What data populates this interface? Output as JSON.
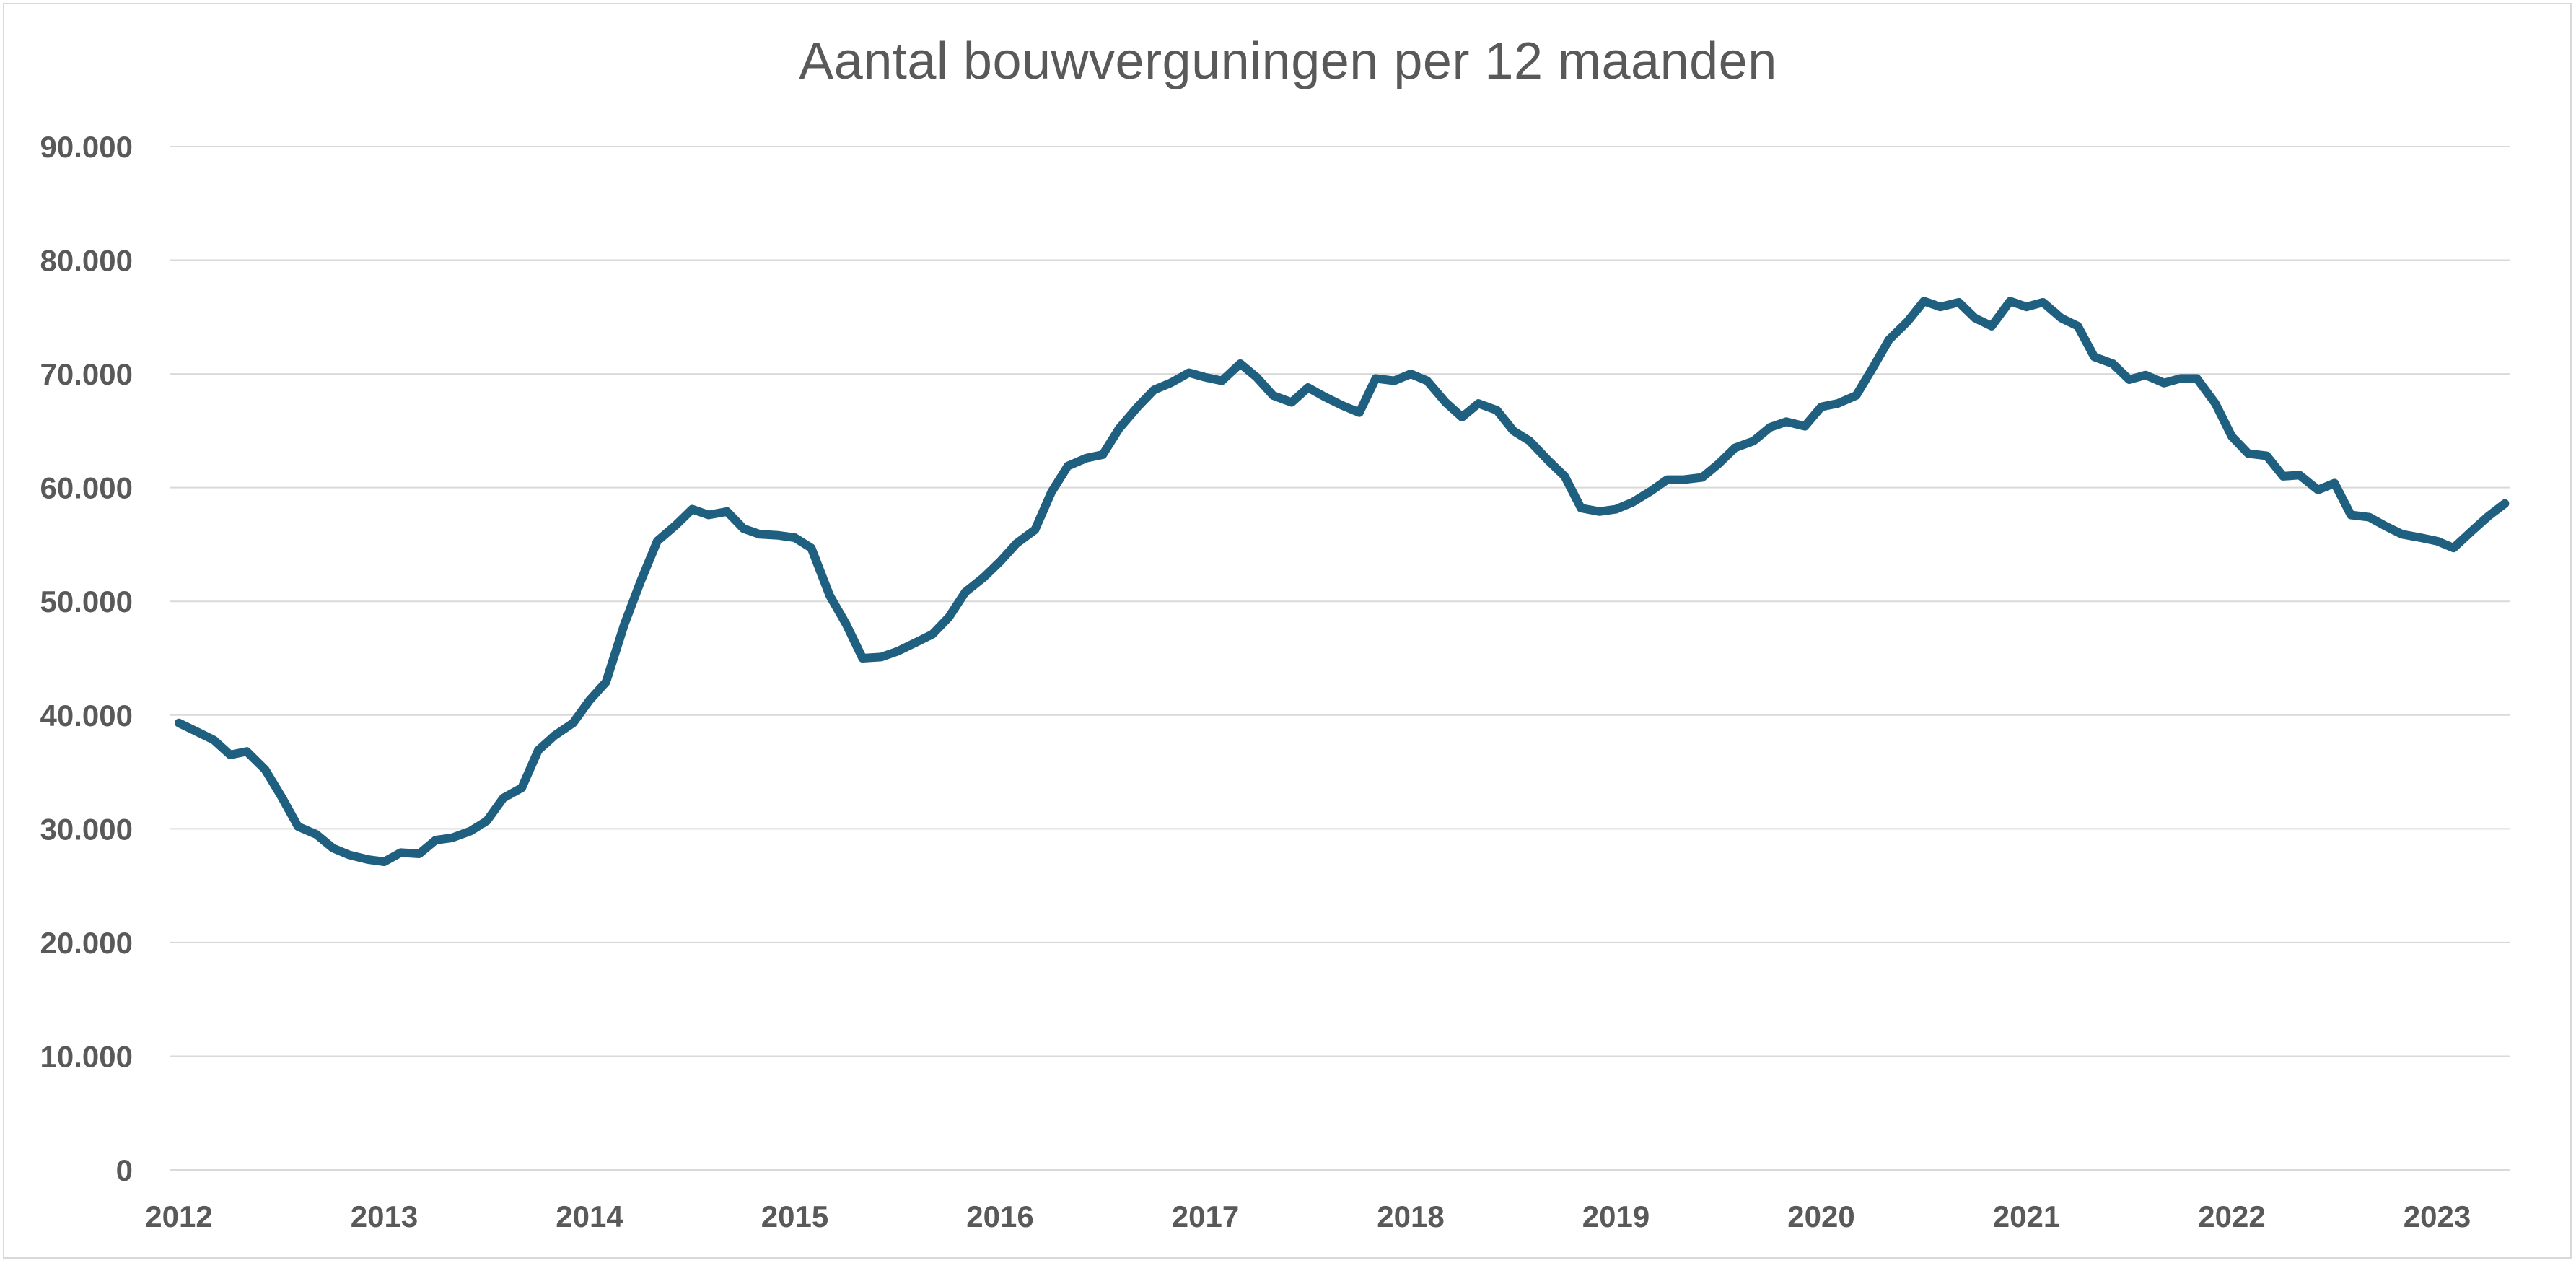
{
  "colors": {
    "line": "#1f5f80",
    "grid": "#d9d9d9",
    "text": "#595959",
    "background": "#ffffff"
  },
  "chart_data": {
    "type": "line",
    "title": "Aantal bouwverguningen per 12 maanden",
    "xlabel": "",
    "ylabel": "",
    "grid": true,
    "legend": "none",
    "ylim": [
      0,
      90000
    ],
    "xlim": [
      2012,
      2023.4
    ],
    "y_ticks": [
      0,
      10000,
      20000,
      30000,
      40000,
      50000,
      60000,
      70000,
      80000,
      90000
    ],
    "y_tick_labels": [
      "0",
      "10.000",
      "20.000",
      "30.000",
      "40.000",
      "50.000",
      "60.000",
      "70.000",
      "80.000",
      "90.000"
    ],
    "x_ticks": [
      2012,
      2013,
      2014,
      2015,
      2016,
      2017,
      2018,
      2019,
      2020,
      2021,
      2022,
      2023
    ],
    "x_tick_labels": [
      "2012",
      "2013",
      "2014",
      "2015",
      "2016",
      "2017",
      "2018",
      "2019",
      "2020",
      "2021",
      "2022",
      "2023"
    ],
    "series": [
      {
        "x": [
          2012.0,
          2012.08,
          2012.17,
          2012.25,
          2012.33,
          2012.42,
          2012.5,
          2012.58,
          2012.67,
          2012.75,
          2012.83,
          2012.92,
          2013.0,
          2013.08,
          2013.17,
          2013.25,
          2013.33,
          2013.42,
          2013.5,
          2013.58,
          2013.67,
          2013.75,
          2013.83,
          2013.92,
          2014.0,
          2014.08,
          2014.17,
          2014.25,
          2014.33,
          2014.42,
          2014.5,
          2014.58,
          2014.67,
          2014.75,
          2014.83,
          2014.92,
          2015.0,
          2015.08,
          2015.17,
          2015.25,
          2015.33,
          2015.42,
          2015.5,
          2015.58,
          2015.67,
          2015.75,
          2015.83,
          2015.92,
          2016.0,
          2016.08,
          2016.17,
          2016.25,
          2016.33,
          2016.42,
          2016.5,
          2016.58,
          2016.67,
          2016.75,
          2016.83,
          2016.92,
          2017.0,
          2017.08,
          2017.17,
          2017.25,
          2017.33,
          2017.42,
          2017.5,
          2017.58,
          2017.67,
          2017.75,
          2017.83,
          2017.92,
          2018.0,
          2018.08,
          2018.17,
          2018.25,
          2018.33,
          2018.42,
          2018.5,
          2018.58,
          2018.67,
          2018.75,
          2018.83,
          2018.92,
          2019.0,
          2019.08,
          2019.17,
          2019.25,
          2019.33,
          2019.42,
          2019.5,
          2019.58,
          2019.67,
          2019.75,
          2019.83,
          2019.92,
          2020.0,
          2020.08,
          2020.17,
          2020.25,
          2020.33,
          2020.42,
          2020.5,
          2020.58,
          2020.67,
          2020.75,
          2020.83,
          2020.92,
          2021.0,
          2021.08,
          2021.17,
          2021.25,
          2021.33,
          2021.42,
          2021.5,
          2021.58,
          2021.67,
          2021.75,
          2021.83,
          2021.92,
          2022.0,
          2022.08,
          2022.17,
          2022.25,
          2022.33,
          2022.42,
          2022.5,
          2022.58,
          2022.67,
          2022.75,
          2022.83,
          2022.92,
          2023.0,
          2023.08,
          2023.17,
          2023.25,
          2023.33
        ],
        "y": [
          39300,
          38600,
          37800,
          36500,
          36800,
          35200,
          32800,
          30200,
          29500,
          28300,
          27700,
          27300,
          27100,
          27900,
          27800,
          29000,
          29200,
          29800,
          30700,
          32700,
          33600,
          36900,
          38200,
          39300,
          41300,
          42900,
          48000,
          51800,
          55300,
          56700,
          58100,
          57600,
          57900,
          56400,
          55900,
          55800,
          55600,
          54700,
          50500,
          48000,
          45000,
          45100,
          45600,
          46300,
          47100,
          48600,
          50800,
          52100,
          53500,
          55100,
          56300,
          59600,
          61900,
          62600,
          62900,
          65200,
          67100,
          68600,
          69200,
          70100,
          69700,
          69400,
          70900,
          69700,
          68100,
          67500,
          68800,
          68000,
          67200,
          66600,
          69600,
          69400,
          70000,
          69400,
          67500,
          66200,
          67400,
          66800,
          65000,
          64100,
          62400,
          61000,
          58200,
          57900,
          58100,
          58700,
          59700,
          60700,
          60700,
          60900,
          62100,
          63500,
          64100,
          65300,
          65800,
          65400,
          67100,
          67400,
          68100,
          70500,
          73000,
          74600,
          76400,
          75900,
          76300,
          74900,
          74200,
          76400,
          75900,
          76300,
          74900,
          74200,
          71500,
          70900,
          69500,
          69900,
          69200,
          69600,
          69600,
          67400,
          64500,
          63000,
          62800,
          61000,
          61100,
          59800,
          60400,
          57600,
          57400,
          56600,
          55900,
          55600,
          55300,
          54700,
          56200,
          57500,
          58600
        ]
      }
    ]
  }
}
